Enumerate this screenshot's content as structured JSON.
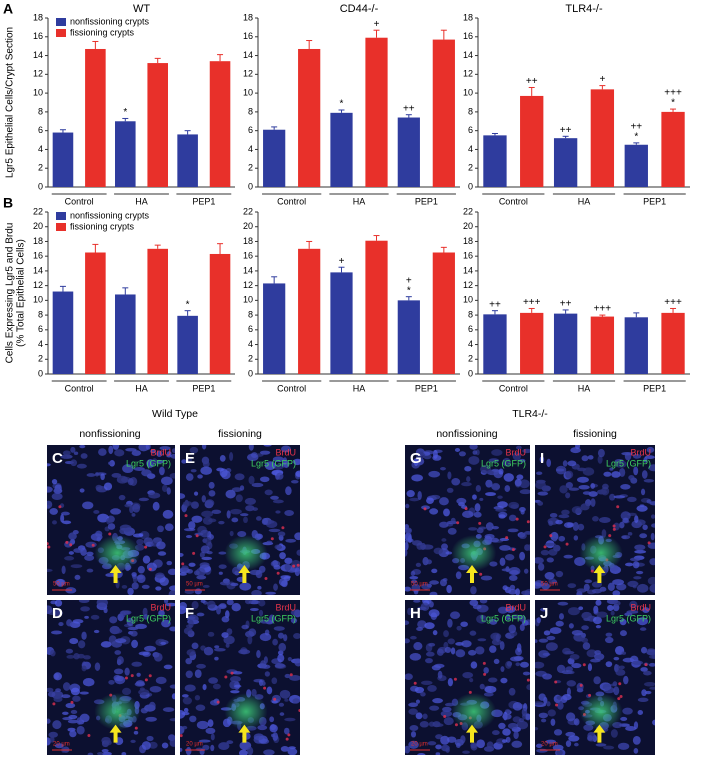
{
  "chart_data": [
    {
      "type": "bar",
      "title": "WT",
      "ylabel": [
        "Lgr5 Epithelial Cells/Crypt Section"
      ],
      "categories": [
        "Control",
        "HA",
        "PEP1"
      ],
      "ylim": [
        0,
        18
      ],
      "yticks": [
        0,
        2,
        4,
        6,
        8,
        10,
        12,
        14,
        16,
        18
      ],
      "legend": "upper left",
      "series": [
        {
          "name": "nonfissioning crypts",
          "color": "#2f3c9e",
          "values": [
            5.8,
            7.0,
            5.6
          ],
          "errors": [
            0.3,
            0.3,
            0.4
          ],
          "annotations": [
            null,
            "*",
            null
          ]
        },
        {
          "name": "fissioning crypts",
          "color": "#e8302a",
          "values": [
            14.7,
            13.2,
            13.4
          ],
          "errors": [
            0.8,
            0.5,
            0.7
          ],
          "annotations": [
            null,
            null,
            null
          ]
        }
      ]
    },
    {
      "type": "bar",
      "title": "CD44-/-",
      "categories": [
        "Control",
        "HA",
        "PEP1"
      ],
      "ylim": [
        0,
        18
      ],
      "yticks": [
        0,
        2,
        4,
        6,
        8,
        10,
        12,
        14,
        16,
        18
      ],
      "series": [
        {
          "color": "#2f3c9e",
          "values": [
            6.1,
            7.9,
            7.4
          ],
          "errors": [
            0.3,
            0.3,
            0.3
          ],
          "annotations": [
            null,
            "*",
            "++"
          ]
        },
        {
          "color": "#e8302a",
          "values": [
            14.7,
            15.9,
            15.7
          ],
          "errors": [
            0.9,
            0.8,
            1.0
          ],
          "annotations": [
            null,
            "+",
            null
          ]
        }
      ]
    },
    {
      "type": "bar",
      "title": "TLR4-/-",
      "categories": [
        "Control",
        "HA",
        "PEP1"
      ],
      "ylim": [
        0,
        18
      ],
      "yticks": [
        0,
        2,
        4,
        6,
        8,
        10,
        12,
        14,
        16,
        18
      ],
      "series": [
        {
          "color": "#2f3c9e",
          "values": [
            5.5,
            5.2,
            4.5
          ],
          "errors": [
            0.2,
            0.2,
            0.2
          ],
          "annotations": [
            null,
            "++",
            [
              "++",
              "*"
            ]
          ]
        },
        {
          "color": "#e8302a",
          "values": [
            9.7,
            10.4,
            8.0
          ],
          "errors": [
            0.9,
            0.4,
            0.3
          ],
          "annotations": [
            "++",
            "+",
            [
              "+++",
              "*"
            ]
          ]
        }
      ]
    },
    {
      "type": "bar",
      "ylabel": [
        "Cells Expressing Lgr5 and Brdu",
        "(% Total Epithelial Cells)"
      ],
      "categories": [
        "Control",
        "HA",
        "PEP1"
      ],
      "ylim": [
        0,
        22
      ],
      "yticks": [
        0,
        2,
        4,
        6,
        8,
        10,
        12,
        14,
        16,
        18,
        20,
        22
      ],
      "legend": "upper left",
      "series": [
        {
          "name": "nonfissioning crypts",
          "color": "#2f3c9e",
          "values": [
            11.2,
            10.8,
            7.9
          ],
          "errors": [
            0.7,
            0.9,
            0.7
          ],
          "annotations": [
            null,
            null,
            "*"
          ]
        },
        {
          "name": "fissioning crypts",
          "color": "#e8302a",
          "values": [
            16.5,
            17.0,
            16.3
          ],
          "errors": [
            1.1,
            0.5,
            1.4
          ],
          "annotations": [
            null,
            null,
            null
          ]
        }
      ]
    },
    {
      "type": "bar",
      "categories": [
        "Control",
        "HA",
        "PEP1"
      ],
      "ylim": [
        0,
        22
      ],
      "yticks": [
        0,
        2,
        4,
        6,
        8,
        10,
        12,
        14,
        16,
        18,
        20,
        22
      ],
      "series": [
        {
          "color": "#2f3c9e",
          "values": [
            12.3,
            13.8,
            10.0
          ],
          "errors": [
            0.9,
            0.7,
            0.5
          ],
          "annotations": [
            null,
            "+",
            [
              "+",
              "*"
            ]
          ]
        },
        {
          "color": "#e8302a",
          "values": [
            17.0,
            18.1,
            16.5
          ],
          "errors": [
            1.0,
            0.7,
            0.7
          ],
          "annotations": [
            null,
            null,
            null
          ]
        }
      ]
    },
    {
      "type": "bar",
      "categories": [
        "Control",
        "HA",
        "PEP1"
      ],
      "ylim": [
        0,
        22
      ],
      "yticks": [
        0,
        2,
        4,
        6,
        8,
        10,
        12,
        14,
        16,
        18,
        20,
        22
      ],
      "series": [
        {
          "color": "#2f3c9e",
          "values": [
            8.1,
            8.2,
            7.7
          ],
          "errors": [
            0.5,
            0.5,
            0.6
          ],
          "annotations": [
            "++",
            "++",
            null
          ]
        },
        {
          "color": "#e8302a",
          "values": [
            8.3,
            7.8,
            8.3
          ],
          "errors": [
            0.6,
            0.2,
            0.6
          ],
          "annotations": [
            "+++",
            "+++",
            "+++"
          ]
        }
      ]
    }
  ],
  "figure": {
    "row_letters": [
      "A",
      "B"
    ],
    "groups": [
      {
        "title": "Wild Type",
        "columns": [
          "nonfissioning",
          "fissioning"
        ]
      },
      {
        "title": "TLR4-/-",
        "columns": [
          "nonfissioning",
          "fissioning"
        ]
      }
    ],
    "panels": [
      {
        "label": "C",
        "stain_red": "BrdU",
        "stain_green": "Lgr5 (GFP)",
        "scale": "50 µm"
      },
      {
        "label": "E",
        "stain_red": "BrdU",
        "stain_green": "Lgr5 (GFP)",
        "scale": "50 µm"
      },
      {
        "label": "D",
        "stain_red": "BrdU",
        "stain_green": "Lgr5 (GFP)",
        "scale": "20 µm"
      },
      {
        "label": "F",
        "stain_red": "BrdU",
        "stain_green": "Lgr5 (GFP)",
        "scale": "20 µm"
      },
      {
        "label": "G",
        "stain_red": "BrdU",
        "stain_green": "Lgr5 (GFP)",
        "scale": "50 µm"
      },
      {
        "label": "I",
        "stain_red": "BrdU",
        "stain_green": "Lgr5 (GFP)",
        "scale": "50 µm"
      },
      {
        "label": "H",
        "stain_red": "BrdU",
        "stain_green": "Lgr5 (GFP)",
        "scale": "20 µm"
      },
      {
        "label": "J",
        "stain_red": "BrdU",
        "stain_green": "Lgr5 (GFP)",
        "scale": "20 µm"
      }
    ]
  }
}
